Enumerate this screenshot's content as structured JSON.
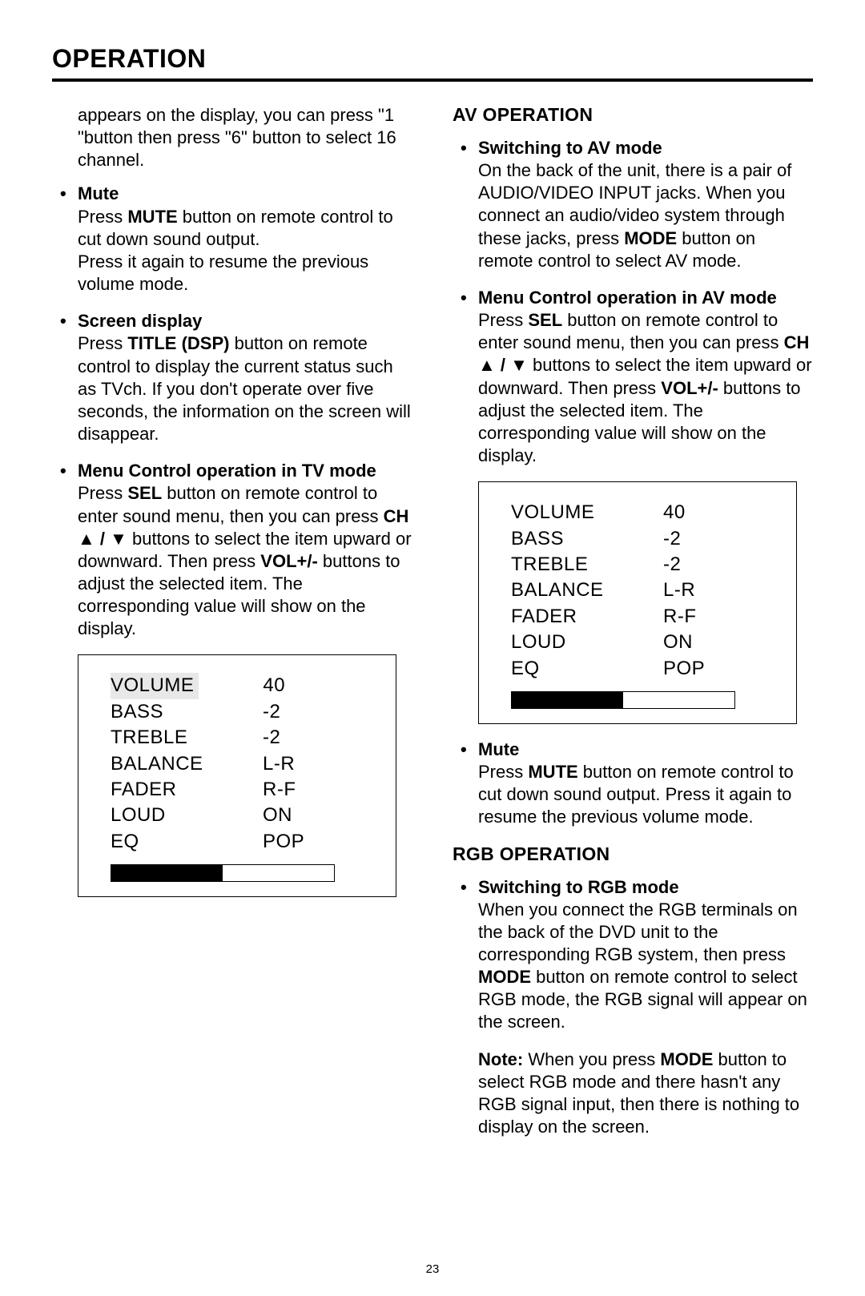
{
  "pageTitle": "OPERATION",
  "pageNumber": "23",
  "leftColumn": {
    "intro": "appears on the display, you can press \"1 \"button then press \"6\" button to select 16 channel.",
    "items": [
      {
        "header": "Mute",
        "body": "Press <b>MUTE</b> button on remote control to cut down sound output.<br>Press it again to resume the previous volume mode."
      },
      {
        "header": "Screen display",
        "body": "Press <b>TITLE (DSP)</b> button on remote control to display the current status such as TVch. If you don't operate over five seconds, the information on the screen will disappear."
      },
      {
        "header": "Menu Control operation in TV mode",
        "body": "Press <b>SEL</b> button on remote control to enter sound menu, then you can press <b>CH ▲ / ▼</b> buttons to select the item upward or downward. Then press <b>VOL+/-</b> buttons to adjust the selected item. The corresponding value will show on the display."
      }
    ]
  },
  "rightColumn": {
    "avSection": {
      "heading": "AV OPERATION",
      "items": [
        {
          "header": "Switching to AV mode",
          "body": "On the back of the unit, there is a pair of AUDIO/VIDEO INPUT jacks. When you connect an audio/video system through these jacks, press <b>MODE</b> button on remote control to select AV mode."
        },
        {
          "header": "Menu Control operation in AV mode",
          "body": "Press <b>SEL</b> button on remote control to enter sound menu, then you can press <b>CH ▲ / ▼</b> buttons to select the item upward or downward. Then press <b>VOL+/-</b>  buttons to adjust the selected item. The corresponding value will show on the display."
        }
      ],
      "muteItem": {
        "header": "Mute",
        "body": "Press <b>MUTE</b>  button on remote control to cut down sound output. Press it again to resume the previous volume mode."
      }
    },
    "rgbSection": {
      "heading": "RGB OPERATION",
      "item": {
        "header": "Switching to RGB mode",
        "body": "When you connect the RGB terminals on the back of the DVD unit to the corresponding RGB system, then press <b>MODE</b> button on remote control to select RGB mode, the RGB signal will appear on the screen."
      },
      "note": "<b>Note:</b>  When you press <b>MODE</b> button to select RGB mode and there hasn't any RGB signal input, then there is nothing to display on the screen."
    }
  },
  "settingsBox1": {
    "rows": [
      {
        "label": "VOLUME",
        "value": "40",
        "highlight": true
      },
      {
        "label": "BASS",
        "value": "-2"
      },
      {
        "label": "TREBLE",
        "value": "-2"
      },
      {
        "label": "BALANCE",
        "value": "L-R"
      },
      {
        "label": "FADER",
        "value": "R-F"
      },
      {
        "label": "LOUD",
        "value": "ON"
      },
      {
        "label": "EQ",
        "value": "POP"
      }
    ],
    "barFillPercent": 50
  },
  "settingsBox2": {
    "rows": [
      {
        "label": "VOLUME",
        "value": "40"
      },
      {
        "label": "BASS",
        "value": "-2"
      },
      {
        "label": "TREBLE",
        "value": "-2"
      },
      {
        "label": "BALANCE",
        "value": "L-R"
      },
      {
        "label": "FADER",
        "value": "R-F"
      },
      {
        "label": "LOUD",
        "value": "ON"
      },
      {
        "label": "EQ",
        "value": "POP"
      }
    ],
    "barFillPercent": 50
  }
}
